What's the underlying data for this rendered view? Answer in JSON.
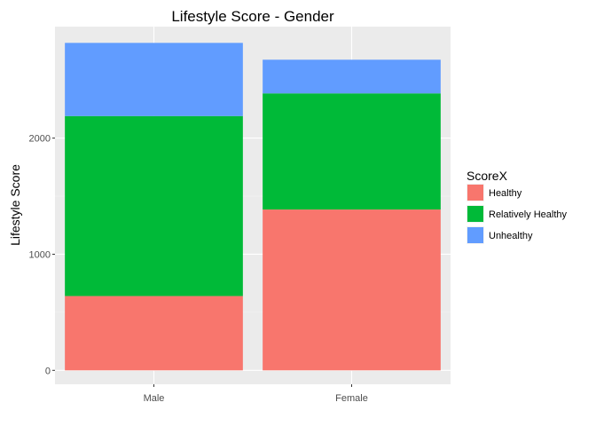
{
  "chart_data": {
    "type": "bar",
    "stacked": true,
    "title": "Lifestyle Score - Gender",
    "xlabel": "",
    "ylabel": "Lifestyle Score",
    "categories": [
      "Male",
      "Female"
    ],
    "series": [
      {
        "name": "Healthy",
        "color": "#F8766D",
        "values": [
          640,
          1385
        ]
      },
      {
        "name": "Relatively Healthy",
        "color": "#00BA38",
        "values": [
          1550,
          1000
        ]
      },
      {
        "name": "Unhealthy",
        "color": "#619CFF",
        "values": [
          630,
          290
        ]
      }
    ],
    "ylim": [
      -120,
      2960
    ],
    "yticks": [
      0,
      1000,
      2000
    ],
    "ytick_labels": [
      "0",
      "1000",
      "2000"
    ],
    "grid": true,
    "legend": {
      "title": "ScoreX",
      "placement": "right"
    }
  }
}
